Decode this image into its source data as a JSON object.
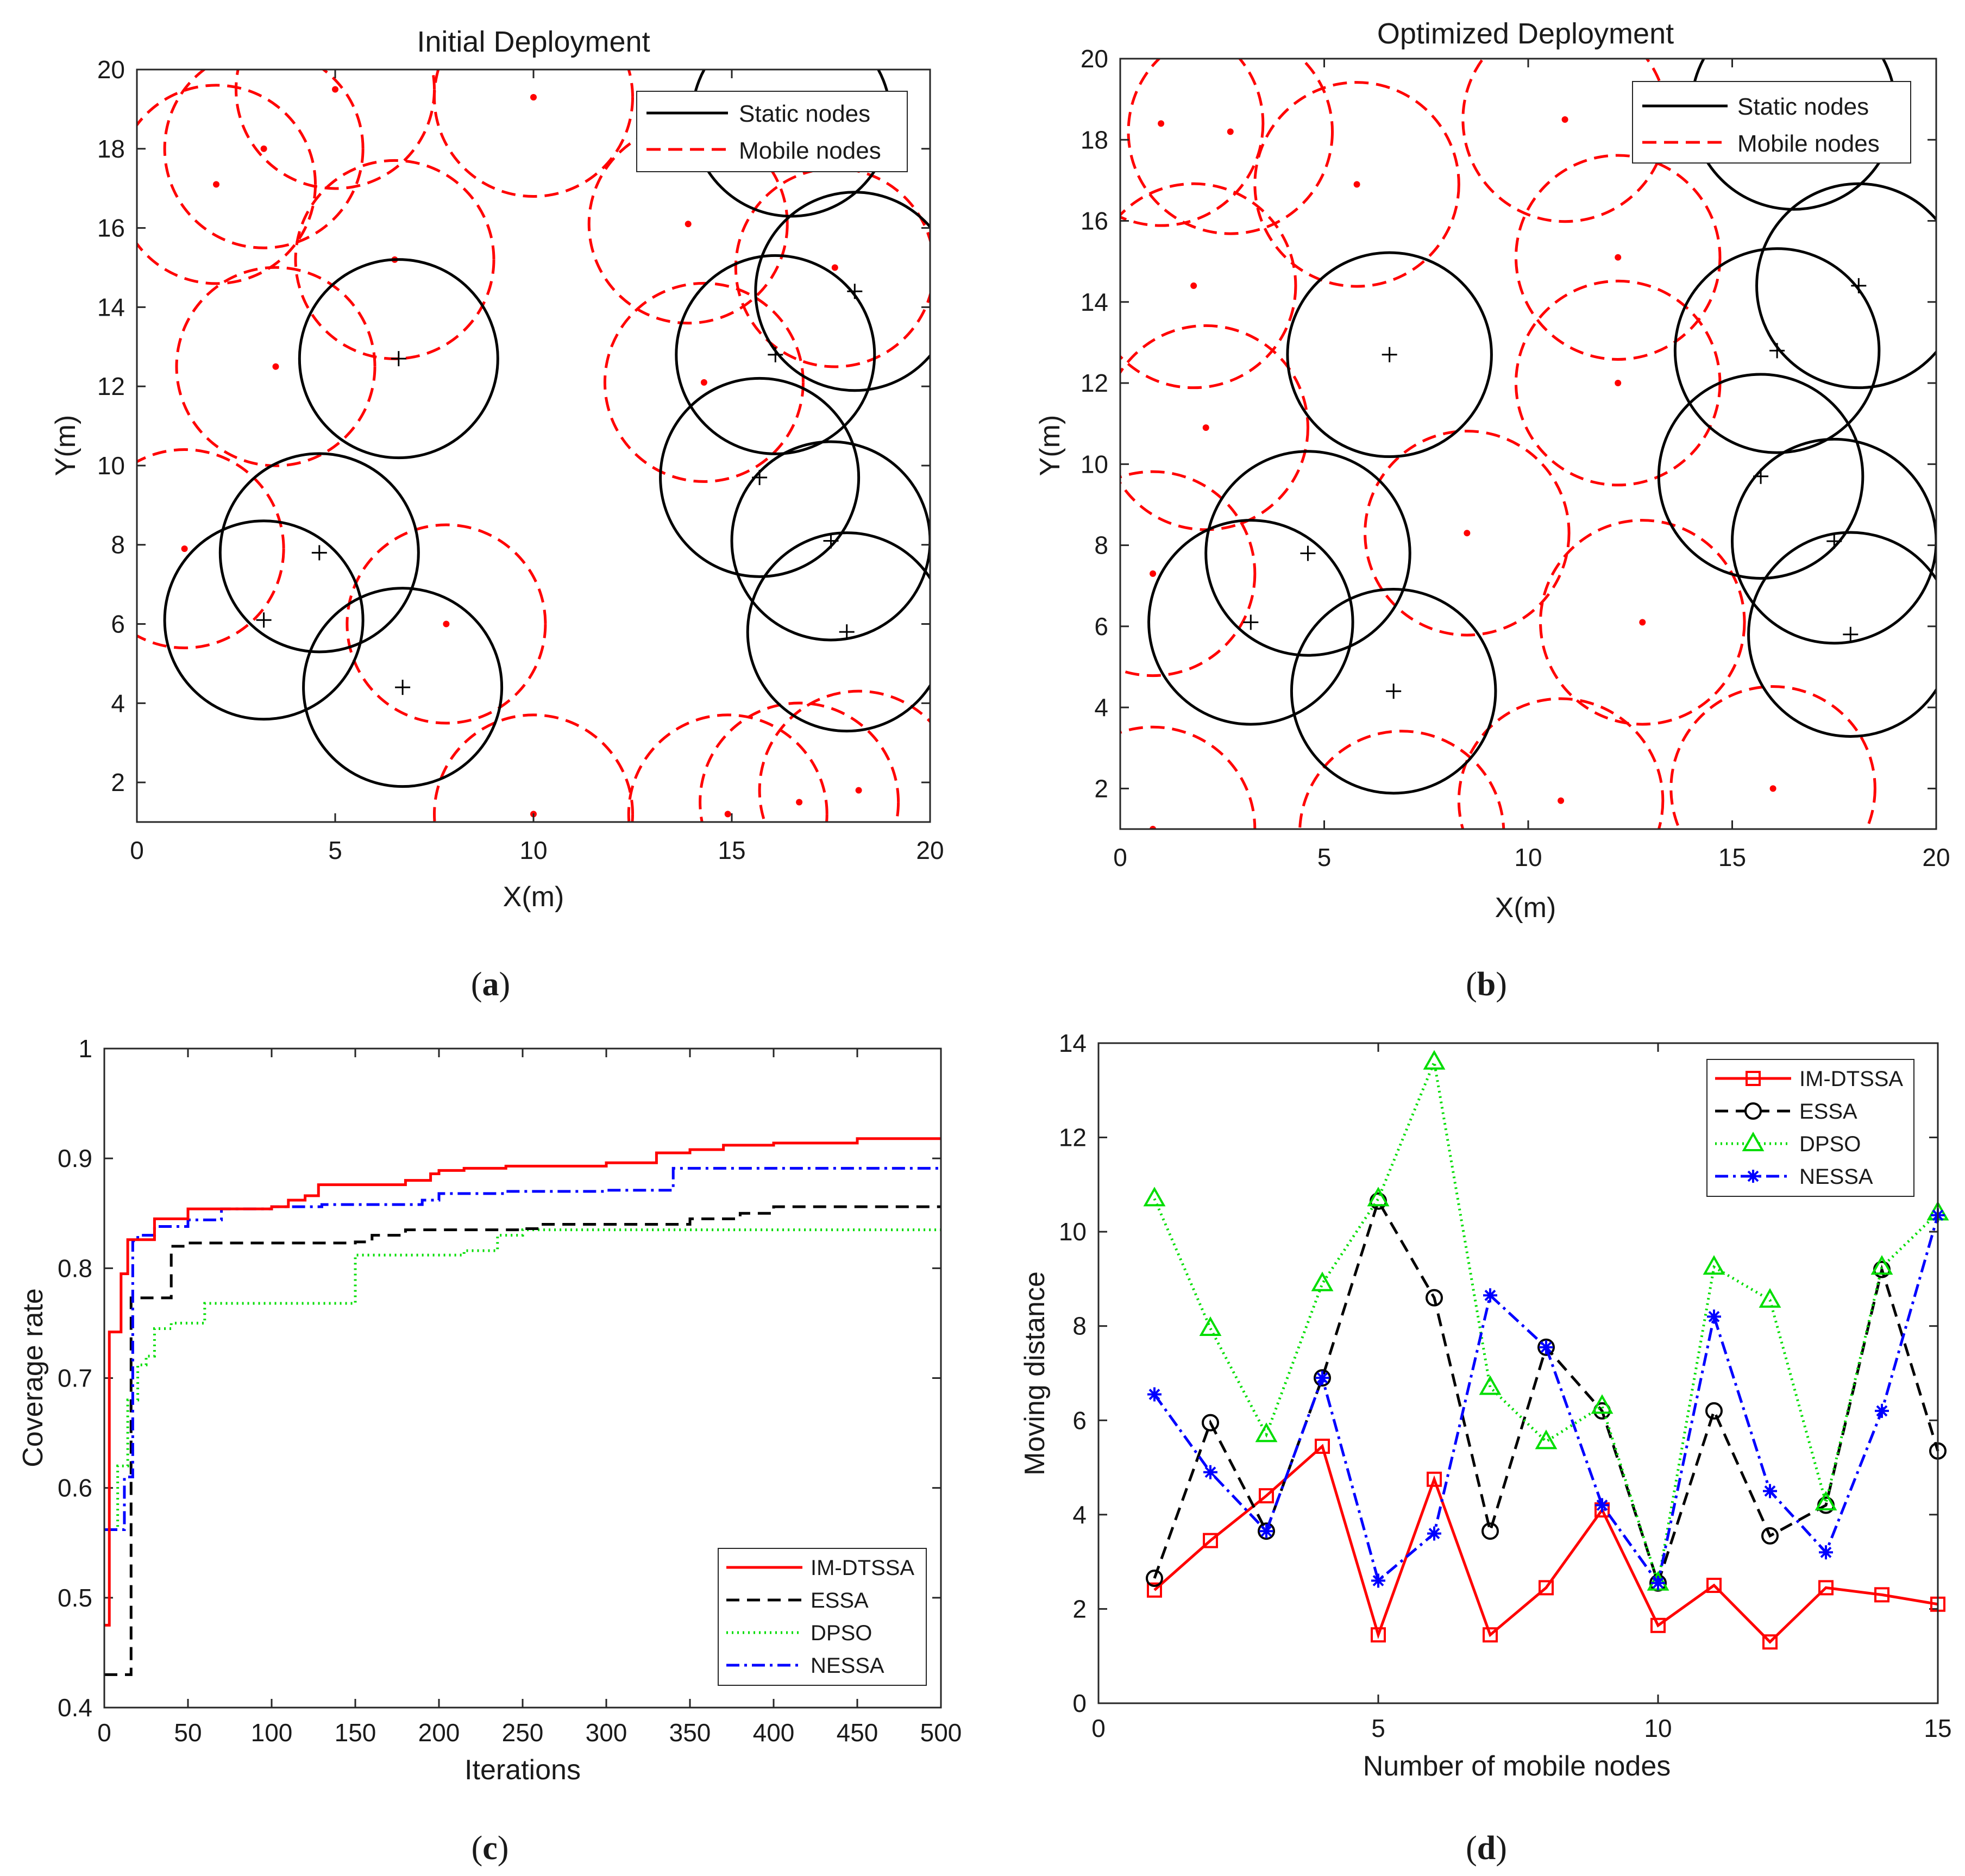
{
  "captions": {
    "a": "a",
    "b": "b",
    "c": "c",
    "d": "d"
  },
  "chart_data": [
    {
      "id": "a",
      "type": "scatter",
      "title": "Initial Deployment",
      "xlabel": "X(m)",
      "ylabel": "Y(m)",
      "xlim": [
        0,
        20
      ],
      "ylim": [
        1,
        20
      ],
      "xticks": [
        0,
        5,
        10,
        15,
        20
      ],
      "yticks": [
        2,
        4,
        6,
        8,
        10,
        12,
        14,
        16,
        18,
        20
      ],
      "sensing_radius": 2.5,
      "legend": [
        "Static nodes",
        "Mobile nodes"
      ],
      "static_nodes": [
        [
          6.6,
          12.7
        ],
        [
          4.6,
          7.8
        ],
        [
          3.2,
          6.1
        ],
        [
          6.7,
          4.4
        ],
        [
          15.7,
          9.7
        ],
        [
          16.1,
          12.8
        ],
        [
          18.1,
          14.4
        ],
        [
          17.5,
          8.1
        ],
        [
          17.9,
          5.8
        ],
        [
          16.5,
          18.8
        ]
      ],
      "mobile_nodes": [
        [
          2.0,
          17.1
        ],
        [
          3.2,
          18.0
        ],
        [
          5.0,
          19.5
        ],
        [
          10.0,
          19.3
        ],
        [
          6.5,
          15.2
        ],
        [
          3.5,
          12.5
        ],
        [
          13.9,
          16.1
        ],
        [
          17.6,
          15.0
        ],
        [
          14.3,
          12.1
        ],
        [
          1.2,
          7.9
        ],
        [
          7.8,
          6.0
        ],
        [
          10.0,
          1.2
        ],
        [
          18.2,
          1.8
        ],
        [
          16.7,
          1.5
        ],
        [
          14.9,
          1.2
        ]
      ]
    },
    {
      "id": "b",
      "type": "scatter",
      "title": "Optimized Deployment",
      "xlabel": "X(m)",
      "ylabel": "Y(m)",
      "xlim": [
        0,
        20
      ],
      "ylim": [
        1,
        20
      ],
      "xticks": [
        0,
        5,
        10,
        15,
        20
      ],
      "yticks": [
        2,
        4,
        6,
        8,
        10,
        12,
        14,
        16,
        18,
        20
      ],
      "sensing_radius": 2.5,
      "legend": [
        "Static nodes",
        "Mobile nodes"
      ],
      "static_nodes": [
        [
          6.6,
          12.7
        ],
        [
          4.6,
          7.8
        ],
        [
          3.2,
          6.1
        ],
        [
          6.7,
          4.4
        ],
        [
          15.7,
          9.7
        ],
        [
          16.1,
          12.8
        ],
        [
          18.1,
          14.4
        ],
        [
          17.5,
          8.1
        ],
        [
          17.9,
          5.8
        ],
        [
          16.5,
          18.8
        ]
      ],
      "mobile_nodes": [
        [
          1.0,
          18.4
        ],
        [
          2.7,
          18.2
        ],
        [
          5.8,
          16.9
        ],
        [
          10.9,
          18.5
        ],
        [
          12.2,
          15.1
        ],
        [
          1.8,
          14.4
        ],
        [
          2.1,
          10.9
        ],
        [
          0.8,
          7.3
        ],
        [
          8.5,
          8.3
        ],
        [
          12.2,
          12.0
        ],
        [
          12.8,
          6.1
        ],
        [
          10.8,
          1.7
        ],
        [
          6.9,
          0.9
        ],
        [
          16.0,
          2.0
        ],
        [
          0.8,
          1.0
        ]
      ]
    },
    {
      "id": "c",
      "type": "line",
      "xlabel": "Iterations",
      "ylabel": "Coverage rate",
      "xlim": [
        0,
        500
      ],
      "ylim": [
        0.4,
        1
      ],
      "xticks": [
        0,
        50,
        100,
        150,
        200,
        250,
        300,
        350,
        400,
        450,
        500
      ],
      "yticks": [
        0.4,
        0.5,
        0.6,
        0.7,
        0.8,
        0.9,
        1
      ],
      "legend_position": "bottom-right",
      "series": [
        {
          "name": "IM-DTSSA",
          "color": "#ff0000",
          "style": "solid",
          "x": [
            0,
            3,
            6,
            10,
            14,
            30,
            50,
            100,
            110,
            120,
            128,
            180,
            195,
            200,
            215,
            240,
            300,
            330,
            350,
            370,
            400,
            450,
            500
          ],
          "y": [
            0.475,
            0.742,
            0.742,
            0.795,
            0.826,
            0.845,
            0.854,
            0.856,
            0.862,
            0.866,
            0.876,
            0.88,
            0.886,
            0.889,
            0.891,
            0.893,
            0.896,
            0.905,
            0.908,
            0.912,
            0.914,
            0.918,
            0.918
          ]
        },
        {
          "name": "ESSA",
          "color": "#000000",
          "style": "dashed",
          "x": [
            0,
            10,
            16,
            34,
            40,
            50,
            100,
            150,
            160,
            180,
            250,
            260,
            300,
            350,
            380,
            400,
            500
          ],
          "y": [
            0.43,
            0.43,
            0.773,
            0.773,
            0.82,
            0.823,
            0.823,
            0.824,
            0.83,
            0.835,
            0.836,
            0.84,
            0.84,
            0.845,
            0.85,
            0.856,
            0.856
          ]
        },
        {
          "name": "DPSO",
          "color": "#00dd00",
          "style": "dotted",
          "x": [
            0,
            8,
            14,
            20,
            25,
            30,
            40,
            60,
            143,
            150,
            200,
            215,
            235,
            250,
            500
          ],
          "y": [
            0.562,
            0.62,
            0.68,
            0.712,
            0.72,
            0.745,
            0.75,
            0.768,
            0.768,
            0.812,
            0.812,
            0.816,
            0.83,
            0.835,
            0.835
          ]
        },
        {
          "name": "NESSA",
          "color": "#0000ff",
          "style": "dashdot",
          "x": [
            0,
            8,
            12,
            17,
            20,
            30,
            50,
            70,
            100,
            130,
            190,
            200,
            240,
            300,
            340,
            500
          ],
          "y": [
            0.562,
            0.562,
            0.61,
            0.825,
            0.83,
            0.838,
            0.844,
            0.854,
            0.856,
            0.858,
            0.862,
            0.868,
            0.87,
            0.871,
            0.891,
            0.891
          ]
        }
      ]
    },
    {
      "id": "d",
      "type": "line",
      "xlabel": "Number of mobile nodes",
      "ylabel": "Moving distance",
      "xlim": [
        0,
        15
      ],
      "ylim": [
        0,
        14
      ],
      "xticks": [
        0,
        5,
        10,
        15
      ],
      "yticks": [
        0,
        2,
        4,
        6,
        8,
        10,
        12,
        14
      ],
      "legend_position": "top-right",
      "x": [
        1,
        2,
        3,
        4,
        5,
        6,
        7,
        8,
        9,
        10,
        11,
        12,
        13,
        14,
        15
      ],
      "series": [
        {
          "name": "IM-DTSSA",
          "color": "#ff0000",
          "style": "solid",
          "marker": "square",
          "values": [
            2.4,
            3.45,
            4.4,
            5.45,
            1.45,
            4.75,
            1.45,
            2.45,
            4.1,
            1.65,
            2.5,
            1.3,
            2.45,
            2.3,
            2.1
          ]
        },
        {
          "name": "ESSA",
          "color": "#000000",
          "style": "dashed",
          "marker": "circle",
          "values": [
            2.65,
            5.95,
            3.65,
            6.9,
            10.65,
            8.6,
            3.65,
            7.55,
            6.2,
            2.55,
            6.2,
            3.55,
            4.2,
            9.2,
            5.35
          ]
        },
        {
          "name": "DPSO",
          "color": "#00dd00",
          "style": "dotted",
          "marker": "triangle",
          "values": [
            10.7,
            7.95,
            5.7,
            8.9,
            10.7,
            13.6,
            6.7,
            5.55,
            6.3,
            2.55,
            9.25,
            8.55,
            4.25,
            9.25,
            10.4
          ]
        },
        {
          "name": "NESSA",
          "color": "#0000ff",
          "style": "dashdot",
          "marker": "asterisk",
          "values": [
            6.55,
            4.9,
            3.65,
            6.9,
            2.6,
            3.6,
            8.65,
            7.55,
            4.2,
            2.55,
            8.2,
            4.5,
            3.2,
            6.2,
            10.35
          ]
        }
      ]
    }
  ]
}
